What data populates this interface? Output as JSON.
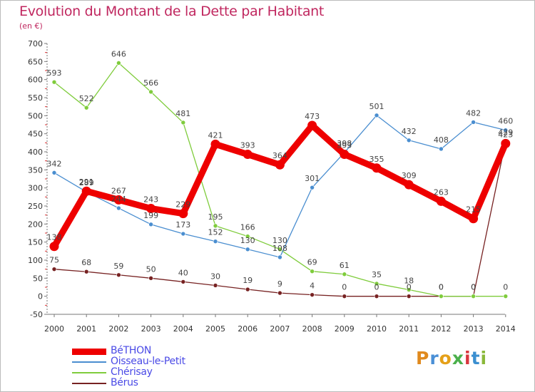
{
  "header": {
    "title": "Evolution du Montant de la Dette par Habitant",
    "subtitle": "(en €)"
  },
  "logo": {
    "text": "Proxiti",
    "letter_colors": [
      "#e08a1e",
      "#4a8fd6",
      "#e5a018",
      "#4bb04b",
      "#d9363e",
      "#3b8fd0",
      "#8ab83a"
    ]
  },
  "chart_data": {
    "type": "line",
    "title": "Evolution du Montant de la Dette par Habitant",
    "subtitle": "(en €)",
    "xlabel": "",
    "ylabel": "",
    "x": [
      "2000",
      "2001",
      "2002",
      "2003",
      "2004",
      "2005",
      "2006",
      "2007",
      "2008",
      "2009",
      "2010",
      "2011",
      "2012",
      "2013",
      "2014"
    ],
    "ylim": [
      -50,
      700
    ],
    "yticks": [
      -50,
      0,
      50,
      100,
      150,
      200,
      250,
      300,
      350,
      400,
      450,
      500,
      550,
      600,
      650,
      700
    ],
    "grid": false,
    "legend": "bottom-left",
    "series": [
      {
        "name": "BéTHON",
        "color": "#ee0000",
        "values": [
          138,
          291,
          267,
          243,
          229,
          421,
          393,
          364,
          473,
          393,
          355,
          309,
          263,
          215,
          423
        ]
      },
      {
        "name": "Oisseau-le-Petit",
        "color": "#4a8ed0",
        "values": [
          342,
          289,
          244,
          199,
          173,
          152,
          130,
          108,
          301,
          398,
          501,
          432,
          408,
          482,
          460
        ]
      },
      {
        "name": "Chérisay",
        "color": "#7fcc3c",
        "values": [
          593,
          522,
          646,
          566,
          481,
          195,
          166,
          130,
          69,
          61,
          35,
          18,
          0,
          0,
          0
        ]
      },
      {
        "name": "Bérus",
        "color": "#772222",
        "values": [
          75,
          68,
          59,
          50,
          40,
          30,
          19,
          9,
          4,
          0,
          0,
          0,
          0,
          0,
          429
        ]
      }
    ]
  }
}
